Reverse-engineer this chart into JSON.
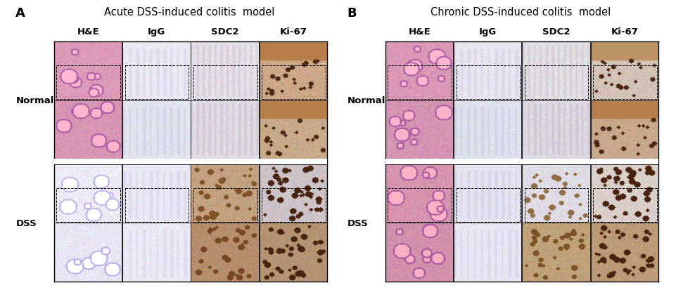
{
  "panel_A_title": "Acute DSS-induced colitis  model",
  "panel_B_title": "Chronic DSS-induced colitis  model",
  "panel_A_label": "A",
  "panel_B_label": "B",
  "col_labels": [
    "H&E",
    "IgG",
    "SDC2",
    "Ki-67"
  ],
  "row_label_normal": "Normal",
  "row_label_dss": "DSS",
  "bg_color": "#f0f0f0",
  "title_fontsize": 10.5,
  "label_fontsize": 13,
  "col_label_fontsize": 9.5,
  "row_label_fontsize": 9.5,
  "A_colors": {
    "n1_he": [
      220,
      155,
      185
    ],
    "n1_igg": [
      235,
      233,
      242
    ],
    "n1_sdc2": [
      228,
      224,
      233
    ],
    "n1_ki67": [
      205,
      168,
      135
    ],
    "n2_he": [
      215,
      150,
      180
    ],
    "n2_igg": [
      225,
      228,
      238
    ],
    "n2_sdc2": [
      222,
      218,
      228
    ],
    "n2_ki67": [
      200,
      170,
      138
    ],
    "d1_he": [
      238,
      236,
      248
    ],
    "d1_igg": [
      234,
      232,
      244
    ],
    "d1_sdc2": [
      195,
      162,
      128
    ],
    "d1_ki67": [
      205,
      195,
      200
    ],
    "d2_he": [
      232,
      230,
      244
    ],
    "d2_igg": [
      236,
      234,
      245
    ],
    "d2_sdc2": [
      182,
      142,
      108
    ],
    "d2_ki67": [
      180,
      148,
      115
    ]
  },
  "B_colors": {
    "n1_he": [
      218,
      152,
      182
    ],
    "n1_igg": [
      232,
      230,
      240
    ],
    "n1_sdc2": [
      226,
      222,
      230
    ],
    "n1_ki67": [
      210,
      195,
      182
    ],
    "n2_he": [
      212,
      148,
      178
    ],
    "n2_igg": [
      222,
      226,
      236
    ],
    "n2_sdc2": [
      220,
      216,
      226
    ],
    "n2_ki67": [
      200,
      168,
      140
    ],
    "d1_he": [
      215,
      148,
      175
    ],
    "d1_igg": [
      230,
      228,
      240
    ],
    "d1_sdc2": [
      224,
      220,
      230
    ],
    "d1_ki67": [
      218,
      208,
      202
    ],
    "d2_he": [
      210,
      145,
      172
    ],
    "d2_igg": [
      232,
      230,
      242
    ],
    "d2_sdc2": [
      192,
      162,
      122
    ],
    "d2_ki67": [
      188,
      155,
      120
    ]
  }
}
